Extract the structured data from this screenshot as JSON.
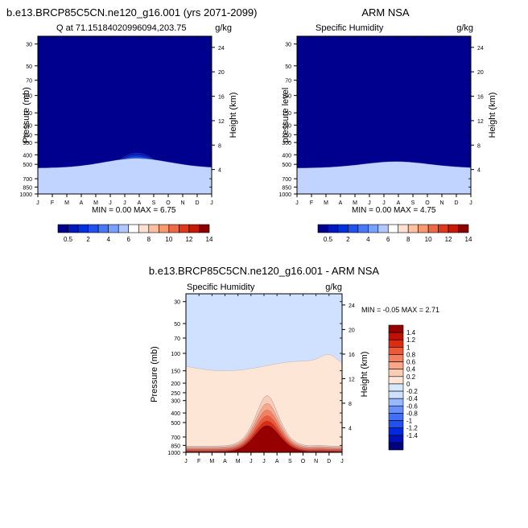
{
  "colors": {
    "blue_scale": [
      "#00008f",
      "#0010b8",
      "#0028d8",
      "#1048f0",
      "#3068f8",
      "#5888ff",
      "#88aaff",
      "#c0d4ff",
      "#ffffff"
    ],
    "warm_scale": [
      "#ffffff",
      "#fde0d0",
      "#fcc0a0",
      "#f89870",
      "#f06848",
      "#e03818",
      "#c81808",
      "#a00808",
      "#780000"
    ],
    "diff_scale": [
      "#00007e",
      "#0010b8",
      "#0028dc",
      "#2050f0",
      "#4070f8",
      "#6890ff",
      "#98b8ff",
      "#d0e0ff",
      "#d8e8fc",
      "#fde6d6",
      "#fccdb6",
      "#f8a888",
      "#f48060",
      "#ec5838",
      "#dc2c10",
      "#c01000",
      "#960000"
    ]
  },
  "chart_data": [
    {
      "type": "heatmap",
      "title": "b.e13.BRCP85C5CN.ne120_g16.001 (yrs 2071-2099)",
      "subtitle_left": "Q at 71.15184020996094,203.75",
      "subtitle_right": "g/kg",
      "ylabel": "Pressure (mb)",
      "ylabel_right": "Height (km)",
      "x_ticks": [
        "J",
        "F",
        "M",
        "A",
        "M",
        "J",
        "J",
        "A",
        "S",
        "O",
        "N",
        "D",
        "J"
      ],
      "y_ticks": [
        "30",
        "50",
        "70",
        "100",
        "150",
        "200",
        "250",
        "300",
        "400",
        "500",
        "700",
        "850",
        "1000"
      ],
      "y_ticks_right": [
        "24",
        "20",
        "16",
        "12",
        "8",
        "4"
      ],
      "stats": "MIN =   0.00 MAX =   6.75",
      "colorbar_labels": [
        "0.5",
        "2",
        "4",
        "6",
        "8",
        "10",
        "12",
        "14"
      ],
      "max_value": 6.75
    },
    {
      "type": "heatmap",
      "title": "ARM NSA",
      "subtitle_left": "Specific Humidity",
      "subtitle_right": "g/kg",
      "ylabel": "pressure level",
      "ylabel_right": "Height (km)",
      "x_ticks": [
        "J",
        "F",
        "M",
        "A",
        "M",
        "J",
        "J",
        "A",
        "S",
        "O",
        "N",
        "D",
        "J"
      ],
      "y_ticks": [
        "30",
        "50",
        "70",
        "100",
        "150",
        "200",
        "250",
        "300",
        "400",
        "500",
        "700",
        "850",
        "1000"
      ],
      "y_ticks_right": [
        "24",
        "20",
        "16",
        "12",
        "8",
        "4"
      ],
      "stats": "MIN =   0.00 MAX =   4.75",
      "colorbar_labels": [
        "0.5",
        "2",
        "4",
        "6",
        "8",
        "10",
        "12",
        "14"
      ],
      "max_value": 4.75
    },
    {
      "type": "heatmap",
      "title": "b.e13.BRCP85C5CN.ne120_g16.001 - ARM NSA",
      "subtitle_left": "Specific Humidity",
      "subtitle_right": "g/kg",
      "ylabel": "Pressure (mb)",
      "ylabel_right": "Height (km)",
      "x_ticks": [
        "J",
        "F",
        "M",
        "A",
        "M",
        "J",
        "J",
        "A",
        "S",
        "O",
        "N",
        "D",
        "J"
      ],
      "y_ticks": [
        "30",
        "50",
        "70",
        "100",
        "150",
        "200",
        "250",
        "300",
        "400",
        "500",
        "700",
        "850",
        "1000"
      ],
      "y_ticks_right": [
        "24",
        "20",
        "16",
        "12",
        "8",
        "4"
      ],
      "stats": "MIN =  -0.05 MAX =   2.71",
      "colorbar_labels": [
        "1.4",
        "1.2",
        "1",
        "0.8",
        "0.6",
        "0.4",
        "0.2",
        "0",
        "-0.2",
        "-0.4",
        "-0.6",
        "-0.8",
        "-1",
        "-1.2",
        "-1.4"
      ],
      "min_value": -0.05,
      "max_value": 2.71
    }
  ]
}
